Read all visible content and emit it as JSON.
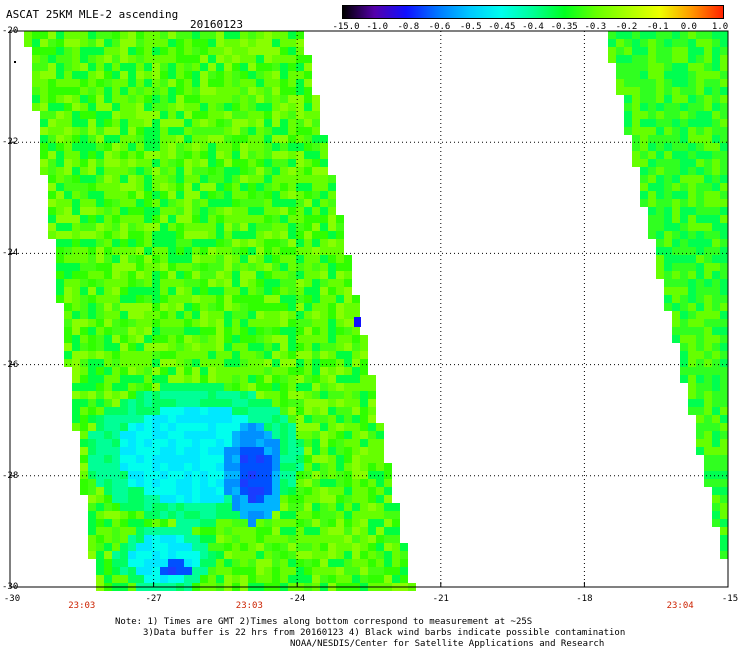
{
  "header": {
    "title": "ASCAT 25KM MLE-2 ascending",
    "date": "20160123"
  },
  "colorbar": {
    "labels": [
      "-15.0",
      "-1.0",
      "-0.8",
      "-0.6",
      "-0.5",
      "-0.45",
      "-0.4",
      "-0.35",
      "-0.3",
      "-0.2",
      "-0.1",
      "0.0",
      "1.0"
    ],
    "colors": [
      "#000000",
      "#5500aa",
      "#1010ff",
      "#0078ff",
      "#00c8ff",
      "#00ffee",
      "#00ff96",
      "#00ff20",
      "#66ff00",
      "#aaff00",
      "#eeff00",
      "#ff9900",
      "#ff2200"
    ]
  },
  "axes": {
    "lat_labels": [
      "-20",
      "-22",
      "-24",
      "-26",
      "-28",
      "-30"
    ],
    "lon_labels": [
      "-30",
      "-27",
      "-24",
      "-21",
      "-18",
      "-15"
    ],
    "lat_range": [
      -30,
      -20
    ],
    "lon_range": [
      -30,
      -15
    ]
  },
  "time_labels": [
    {
      "text": "23:03",
      "lon": -28.5
    },
    {
      "text": "23:03",
      "lon": -25.0
    },
    {
      "text": "23:04",
      "lon": -16.0
    }
  ],
  "notes": [
    "Note: 1) Times are GMT 2)Times along bottom correspond to measurement at ~25S",
    "3)Data buffer is 22 hrs from 20160123 4) Black wind barbs indicate possible contamination",
    "NOAA/NESDIS/Center for Satellite Applications and Research"
  ],
  "colors": {
    "background_green": "#66ff00",
    "cyan": "#00ffee",
    "blue": "#1010ff",
    "time_label": "#cc2200"
  }
}
